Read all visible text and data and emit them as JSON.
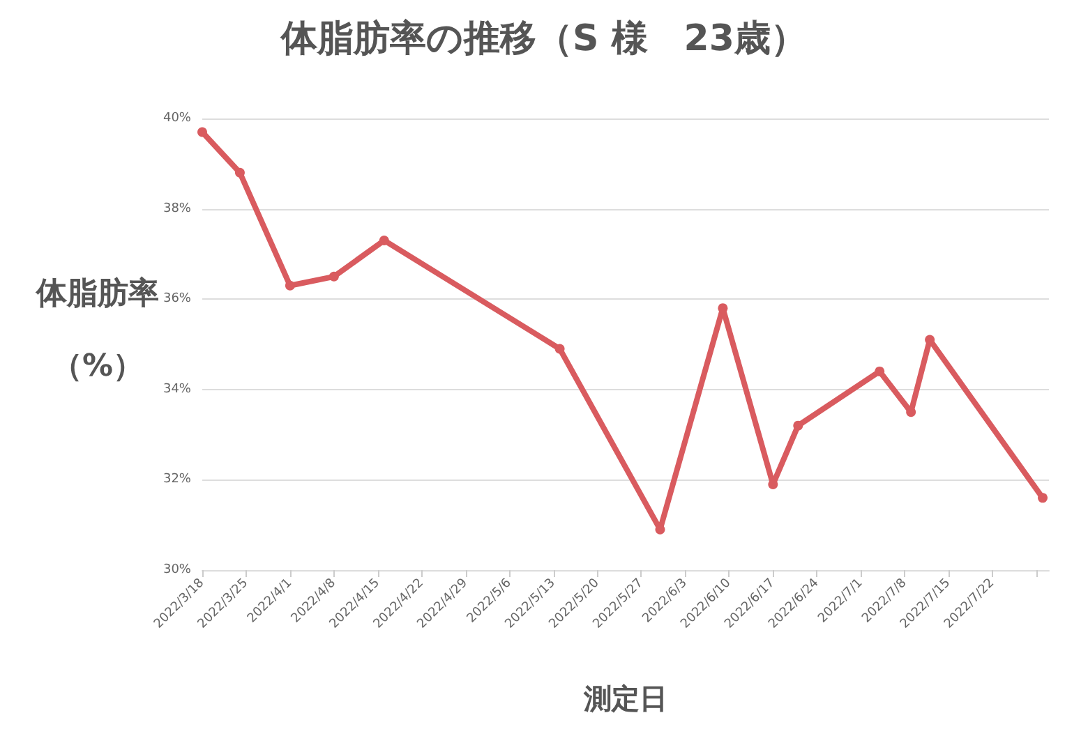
{
  "chart_data": {
    "type": "line",
    "title": "体脂肪率の推移（S 様　23歳）",
    "xlabel": "測定日",
    "ylabel": "体脂肪率（%）",
    "x": [
      "2022-03-18",
      "2022-03-24",
      "2022-04-01",
      "2022-04-08",
      "2022-04-16",
      "2022-05-14",
      "2022-05-30",
      "2022-06-09",
      "2022-06-17",
      "2022-06-21",
      "2022-07-04",
      "2022-07-09",
      "2022-07-12",
      "2022-07-30"
    ],
    "series": [
      {
        "color": "#d95b5f",
        "values": [
          39.7,
          38.8,
          36.3,
          36.5,
          37.3,
          34.9,
          30.9,
          35.8,
          31.9,
          33.2,
          34.4,
          33.5,
          35.1,
          31.6
        ]
      }
    ],
    "xlim": [
      "2022-03-18",
      "2022-07-31"
    ],
    "xticks": [
      {
        "value": "2022-03-18",
        "label": "2022/3/18"
      },
      {
        "value": "2022-03-25",
        "label": "2022/3/25"
      },
      {
        "value": "2022-04-01",
        "label": "2022/4/1"
      },
      {
        "value": "2022-04-08",
        "label": "2022/4/8"
      },
      {
        "value": "2022-04-15",
        "label": "2022/4/15"
      },
      {
        "value": "2022-04-22",
        "label": "2022/4/22"
      },
      {
        "value": "2022-04-29",
        "label": "2022/4/29"
      },
      {
        "value": "2022-05-06",
        "label": "2022/5/6"
      },
      {
        "value": "2022-05-13",
        "label": "2022/5/13"
      },
      {
        "value": "2022-05-20",
        "label": "2022/5/20"
      },
      {
        "value": "2022-05-27",
        "label": "2022/5/27"
      },
      {
        "value": "2022-06-03",
        "label": "2022/6/3"
      },
      {
        "value": "2022-06-10",
        "label": "2022/6/10"
      },
      {
        "value": "2022-06-17",
        "label": "2022/6/17"
      },
      {
        "value": "2022-06-24",
        "label": "2022/6/24"
      },
      {
        "value": "2022-07-01",
        "label": "2022/7/1"
      },
      {
        "value": "2022-07-08",
        "label": "2022/7/8"
      },
      {
        "value": "2022-07-15",
        "label": "2022/7/15"
      },
      {
        "value": "2022-07-22",
        "label": "2022/7/22"
      },
      {
        "value": "2022-07-29",
        "label": null
      }
    ],
    "ylim": [
      30,
      40
    ],
    "yticks": [
      {
        "value": 30,
        "label": "30%"
      },
      {
        "value": 32,
        "label": "32%"
      },
      {
        "value": 34,
        "label": "34%"
      },
      {
        "value": 36,
        "label": "36%"
      },
      {
        "value": 38,
        "label": "38%"
      },
      {
        "value": 40,
        "label": "40%"
      }
    ],
    "grid": "y",
    "marker": "circle",
    "line_style": "solid"
  }
}
